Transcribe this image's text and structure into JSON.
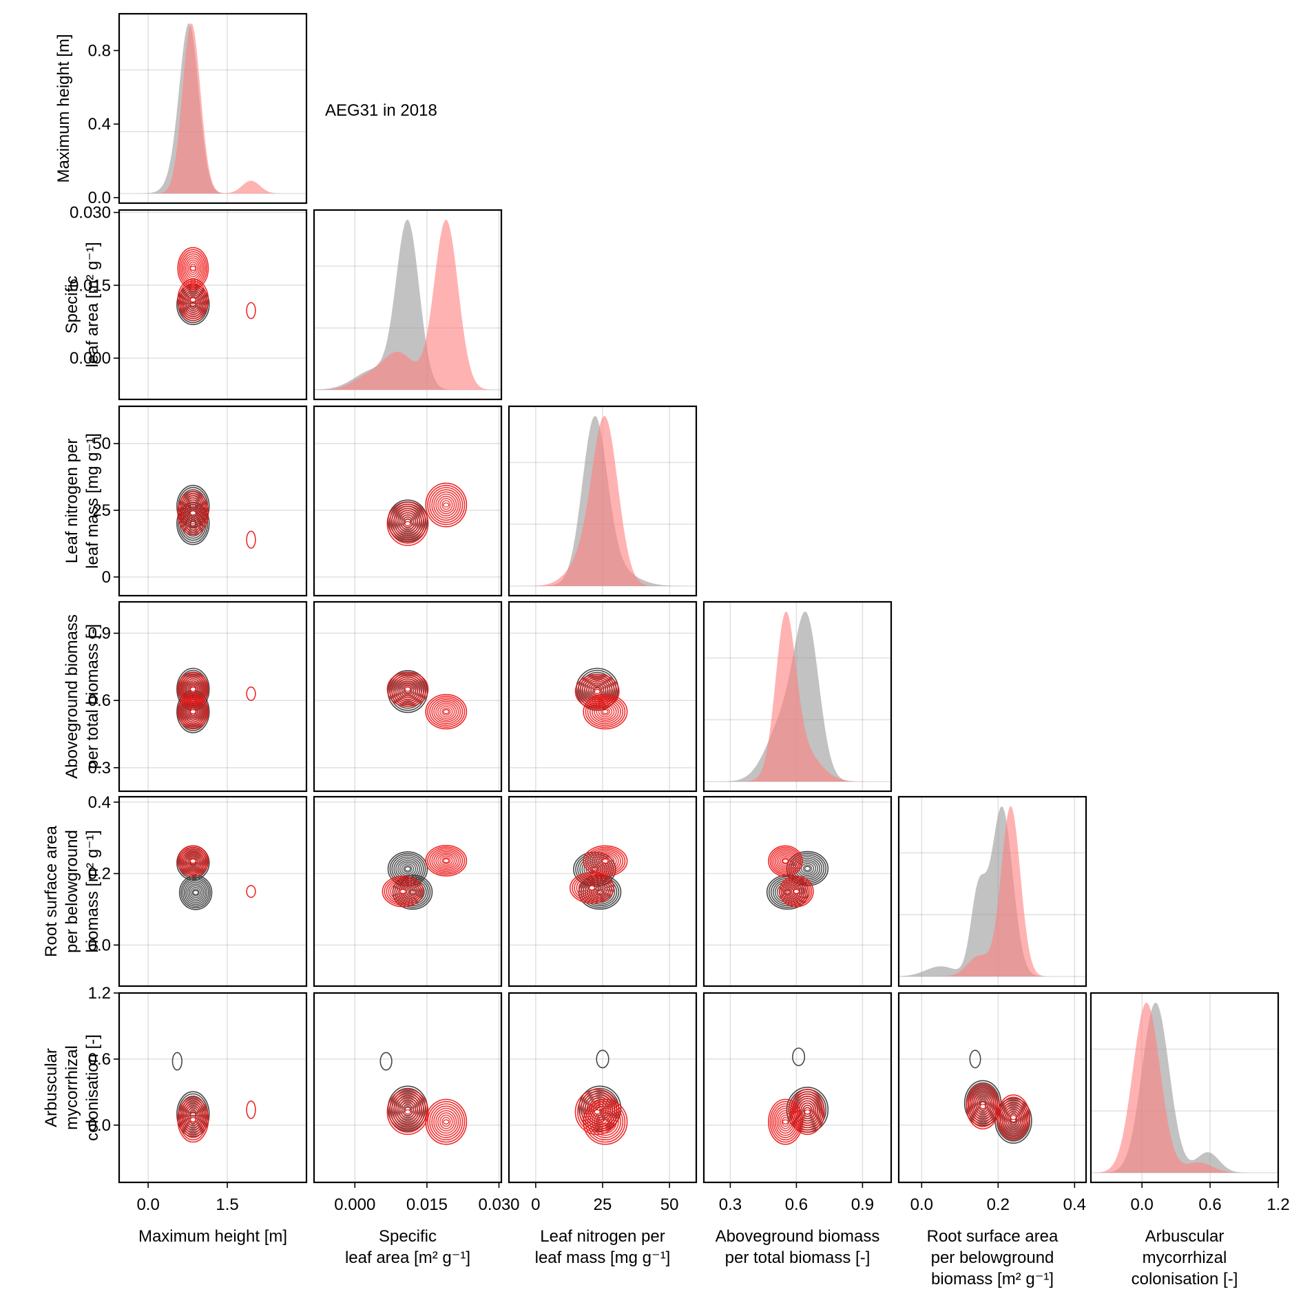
{
  "title": "AEG31 in 2018",
  "chart_data": {
    "type": "pairplot",
    "title": "AEG31 in 2018",
    "layout": "lower-triangular corner plot: diagonal = kernel density (area), off-diagonal = 2D density contours",
    "group_colors": {
      "group_a_density_fill": "#999999",
      "group_b_density_fill": "#ff7f7f",
      "group_a_contour": "#333333",
      "group_b_contour": "#ee1111"
    },
    "variables": [
      {
        "key": "height",
        "label_lines": [
          "Maximum height [m]"
        ],
        "ylabel_lines": [
          "Maximum height [m]"
        ],
        "xlim": [
          -0.55,
          3.0
        ],
        "xticks": [
          0.0,
          1.5
        ],
        "xtick_labels": [
          "0.0",
          "1.5"
        ],
        "ylim": [
          -0.03,
          1.0
        ],
        "yticks": [
          0.0,
          0.4,
          0.8
        ],
        "ytick_labels": [
          "0.0",
          "0.4",
          "0.8"
        ]
      },
      {
        "key": "sla",
        "label_lines": [
          "Specific",
          "leaf area [m² g⁻¹]"
        ],
        "ylabel_lines": [
          "Specific",
          "leaf area [m² g⁻¹]"
        ],
        "xlim": [
          -0.0085,
          0.0305
        ],
        "xticks": [
          0.0,
          0.015,
          0.03
        ],
        "xtick_labels": [
          "0.000",
          "0.015",
          "0.030"
        ],
        "ylim": [
          -0.0085,
          0.0305
        ],
        "yticks": [
          0.0,
          0.015,
          0.03
        ],
        "ytick_labels": [
          "0.000",
          "0.015",
          "0.030"
        ]
      },
      {
        "key": "lnc",
        "label_lines": [
          "Leaf nitrogen per",
          "leaf mass [mg g⁻¹]"
        ],
        "ylabel_lines": [
          "Leaf nitrogen per",
          "leaf mass [mg g⁻¹]"
        ],
        "xlim": [
          -10,
          60
        ],
        "xticks": [
          0,
          25,
          50
        ],
        "xtick_labels": [
          "0",
          "25",
          "50"
        ],
        "ylim": [
          -7,
          64
        ],
        "yticks": [
          0,
          25,
          50
        ],
        "ytick_labels": [
          "0",
          "25",
          "50"
        ]
      },
      {
        "key": "abp",
        "label_lines": [
          "Aboveground biomass",
          "per total biomass [-]"
        ],
        "ylabel_lines": [
          "Aboveground biomass",
          "per total biomass [-]"
        ],
        "xlim": [
          0.18,
          1.03
        ],
        "xticks": [
          0.3,
          0.6,
          0.9
        ],
        "xtick_labels": [
          "0.3",
          "0.6",
          "0.9"
        ],
        "ylim": [
          0.195,
          1.04
        ],
        "yticks": [
          0.3,
          0.6,
          0.9
        ],
        "ytick_labels": [
          "0.3",
          "0.6",
          "0.9"
        ]
      },
      {
        "key": "rsa",
        "label_lines": [
          "Root surface area",
          "per belowground",
          "biomass [m² g⁻¹]"
        ],
        "ylabel_lines": [
          "Root surface area",
          "per belowground",
          "biomass [m² g⁻¹]"
        ],
        "xlim": [
          -0.06,
          0.43
        ],
        "xticks": [
          0.0,
          0.2,
          0.4
        ],
        "xtick_labels": [
          "0.0",
          "0.2",
          "0.4"
        ],
        "ylim": [
          -0.115,
          0.415
        ],
        "yticks": [
          0.0,
          0.2,
          0.4
        ],
        "ytick_labels": [
          "0.0",
          "0.2",
          "0.4"
        ]
      },
      {
        "key": "amc",
        "label_lines": [
          "Arbuscular",
          "mycorrhizal",
          "colonisation [-]"
        ],
        "ylabel_lines": [
          "Arbuscular",
          "mycorrhizal",
          "colonisation [-]"
        ],
        "xlim": [
          -0.45,
          1.2
        ],
        "xticks": [
          0.0,
          0.6,
          1.2
        ],
        "xtick_labels": [
          "0.0",
          "0.6",
          "1.2"
        ],
        "ylim": [
          -0.52,
          1.2
        ],
        "yticks": [
          0.0,
          0.6,
          1.2
        ],
        "ytick_labels": [
          "0.0",
          "0.6",
          "1.2"
        ]
      }
    ],
    "groups": [
      {
        "name": "group_a",
        "color": "gray",
        "modes": {
          "height": [
            [
              0.78,
              0.18,
              1.0
            ],
            [
              0.55,
              0.2,
              0.08
            ]
          ],
          "sla": [
            [
              0.011,
              0.0024,
              1.0
            ],
            [
              0.004,
              0.004,
              0.12
            ]
          ],
          "lnc": [
            [
              22,
              4.6,
              1.0
            ],
            [
              28,
              8,
              0.12
            ]
          ],
          "abp": [
            [
              0.65,
              0.055,
              1.0
            ],
            [
              0.55,
              0.08,
              0.45
            ]
          ],
          "rsa": [
            [
              0.21,
              0.028,
              1.0
            ],
            [
              0.148,
              0.02,
              0.48
            ],
            [
              0.05,
              0.04,
              0.06
            ]
          ],
          "amc": [
            [
              0.12,
              0.12,
              1.0
            ],
            [
              0.58,
              0.1,
              0.12
            ]
          ]
        },
        "peak_density": 1.0
      },
      {
        "name": "group_b",
        "color": "red",
        "modes": {
          "height": [
            [
              0.82,
              0.17,
              1.0
            ],
            [
              1.95,
              0.17,
              0.075
            ]
          ],
          "sla": [
            [
              0.019,
              0.0025,
              1.0
            ],
            [
              0.009,
              0.0035,
              0.22
            ],
            [
              0.002,
              0.003,
              0.06
            ]
          ],
          "lnc": [
            [
              26,
              4.8,
              1.0
            ],
            [
              18,
              6,
              0.15
            ]
          ],
          "abp": [
            [
              0.55,
              0.045,
              1.0
            ],
            [
              0.62,
              0.08,
              0.22
            ]
          ],
          "rsa": [
            [
              0.233,
              0.025,
              1.0
            ],
            [
              0.15,
              0.03,
              0.12
            ]
          ],
          "amc": [
            [
              0.04,
              0.12,
              1.0
            ],
            [
              0.5,
              0.12,
              0.06
            ]
          ]
        },
        "peak_density": 1.0
      }
    ],
    "contour_peaks": {
      "group_a": {
        "height|sla": [
          [
            0.85,
            0.011
          ]
        ],
        "height|lnc": [
          [
            0.85,
            26.5
          ],
          [
            0.85,
            20
          ]
        ],
        "sla|lnc": [
          [
            0.011,
            21
          ]
        ],
        "height|abp": [
          [
            0.85,
            0.65
          ],
          [
            0.85,
            0.55
          ]
        ],
        "sla|abp": [
          [
            0.011,
            0.64
          ]
        ],
        "lnc|abp": [
          [
            23,
            0.65
          ]
        ],
        "height|rsa": [
          [
            0.85,
            0.23
          ],
          [
            0.9,
            0.147
          ]
        ],
        "sla|rsa": [
          [
            0.011,
            0.213
          ],
          [
            0.012,
            0.148
          ]
        ],
        "lnc|rsa": [
          [
            22,
            0.212
          ],
          [
            24,
            0.148
          ]
        ],
        "abp|rsa": [
          [
            0.65,
            0.214
          ],
          [
            0.56,
            0.148
          ]
        ],
        "height|amc": [
          [
            0.85,
            0.1
          ],
          [
            0.55,
            0.58
          ]
        ],
        "sla|amc": [
          [
            0.011,
            0.15
          ],
          [
            0.0065,
            0.58
          ]
        ],
        "lnc|amc": [
          [
            24,
            0.15
          ],
          [
            25,
            0.6
          ]
        ],
        "abp|amc": [
          [
            0.65,
            0.14
          ],
          [
            0.61,
            0.62
          ]
        ],
        "rsa|amc": [
          [
            0.16,
            0.2
          ],
          [
            0.24,
            0.04
          ],
          [
            0.14,
            0.6
          ]
        ]
      },
      "group_b": {
        "height|sla": [
          [
            0.85,
            0.0185
          ],
          [
            0.85,
            0.012
          ],
          [
            1.95,
            0.0098
          ]
        ],
        "height|lnc": [
          [
            0.85,
            24
          ],
          [
            1.95,
            14
          ]
        ],
        "sla|lnc": [
          [
            0.019,
            27
          ],
          [
            0.011,
            20
          ]
        ],
        "height|abp": [
          [
            0.85,
            0.55
          ],
          [
            0.85,
            0.65
          ],
          [
            1.95,
            0.63
          ]
        ],
        "sla|abp": [
          [
            0.019,
            0.55
          ],
          [
            0.011,
            0.65
          ]
        ],
        "lnc|abp": [
          [
            26,
            0.55
          ],
          [
            23,
            0.64
          ]
        ],
        "height|rsa": [
          [
            0.85,
            0.235
          ],
          [
            1.95,
            0.15
          ]
        ],
        "sla|rsa": [
          [
            0.019,
            0.236
          ],
          [
            0.01,
            0.15
          ]
        ],
        "lnc|rsa": [
          [
            26,
            0.235
          ],
          [
            21,
            0.16
          ]
        ],
        "abp|rsa": [
          [
            0.55,
            0.235
          ],
          [
            0.6,
            0.15
          ]
        ],
        "height|amc": [
          [
            0.85,
            0.05
          ],
          [
            1.95,
            0.14
          ]
        ],
        "sla|amc": [
          [
            0.019,
            0.03
          ],
          [
            0.011,
            0.12
          ]
        ],
        "lnc|amc": [
          [
            26,
            0.03
          ],
          [
            23,
            0.12
          ]
        ],
        "abp|amc": [
          [
            0.55,
            0.03
          ],
          [
            0.65,
            0.12
          ]
        ],
        "rsa|amc": [
          [
            0.24,
            0.07
          ],
          [
            0.16,
            0.17
          ]
        ]
      }
    }
  }
}
